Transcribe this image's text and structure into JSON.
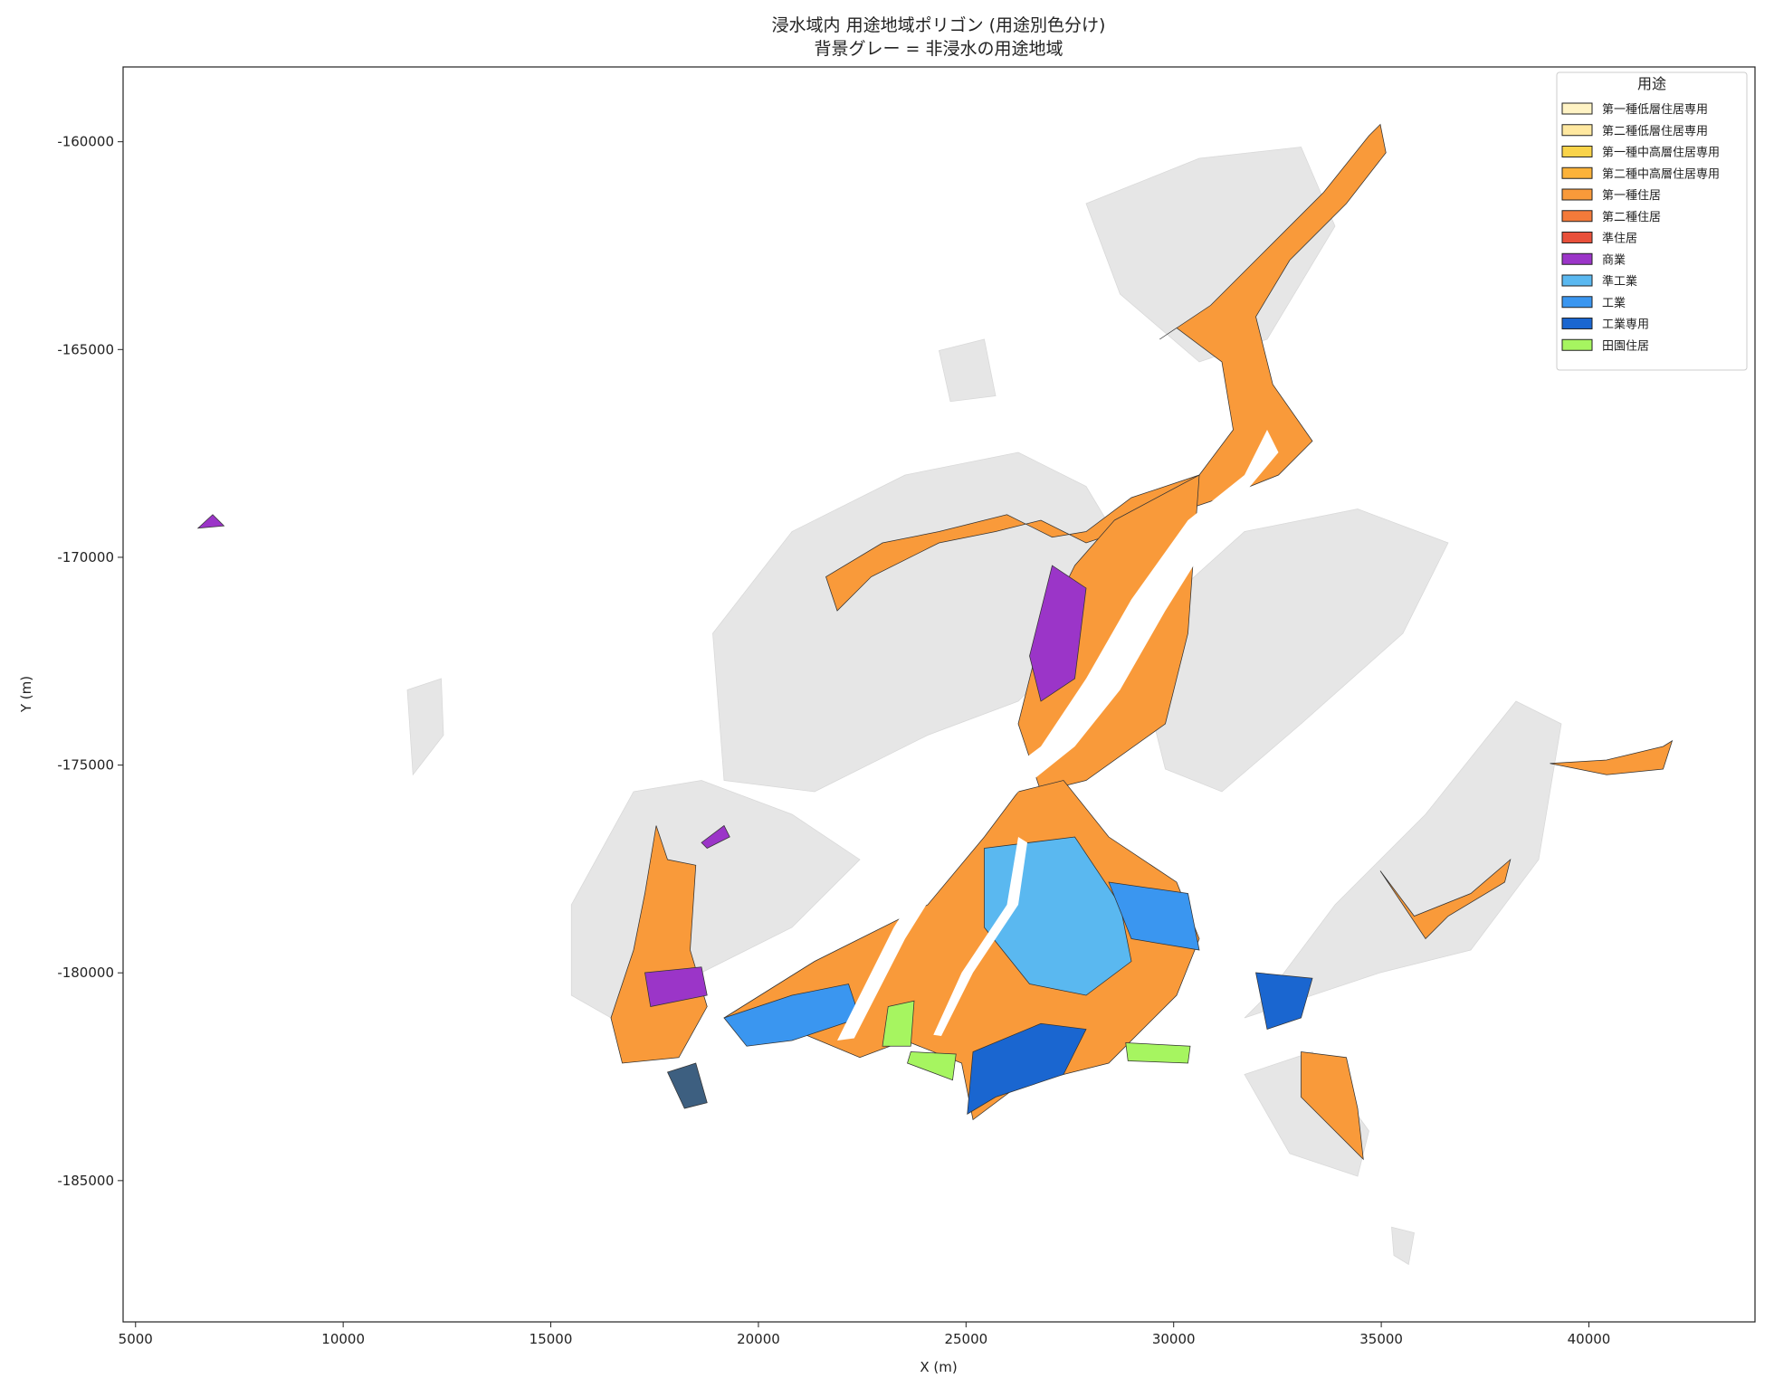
{
  "chart_data": {
    "type": "map",
    "title": "浸水域内 用途地域ポリゴン (用途別色分け)",
    "subtitle": "背景グレー = 非浸水の用途地域",
    "x_label": "X (m)",
    "y_label": "Y (m)",
    "xlim": [
      4700,
      44000
    ],
    "ylim": [
      -188400,
      -158200
    ],
    "xticks": [
      5000,
      10000,
      15000,
      20000,
      25000,
      30000,
      35000,
      40000
    ],
    "yticks": [
      -185000,
      -180000,
      -175000,
      -170000,
      -165000,
      -160000
    ],
    "legend": {
      "title": "用途",
      "loc": "upper right",
      "entries": [
        {
          "name": "第一種低層住居専用",
          "color": "#fff3c4"
        },
        {
          "name": "第二種低層住居専用",
          "color": "#ffe8a0"
        },
        {
          "name": "第一種中高層住居専用",
          "color": "#f9d34a"
        },
        {
          "name": "第二種中高層住居専用",
          "color": "#fbb23a"
        },
        {
          "name": "第一種住居",
          "color": "#f99a3a"
        },
        {
          "name": "第二種住居",
          "color": "#f47a3a"
        },
        {
          "name": "準住居",
          "color": "#e8503a"
        },
        {
          "name": "商業",
          "color": "#9b35c8"
        },
        {
          "name": "準工業",
          "color": "#5ab8f0"
        },
        {
          "name": "工業",
          "color": "#3a96f0"
        },
        {
          "name": "工業専用",
          "color": "#1a66d0"
        },
        {
          "name": "田園住居",
          "color": "#a6f560"
        }
      ]
    }
  }
}
